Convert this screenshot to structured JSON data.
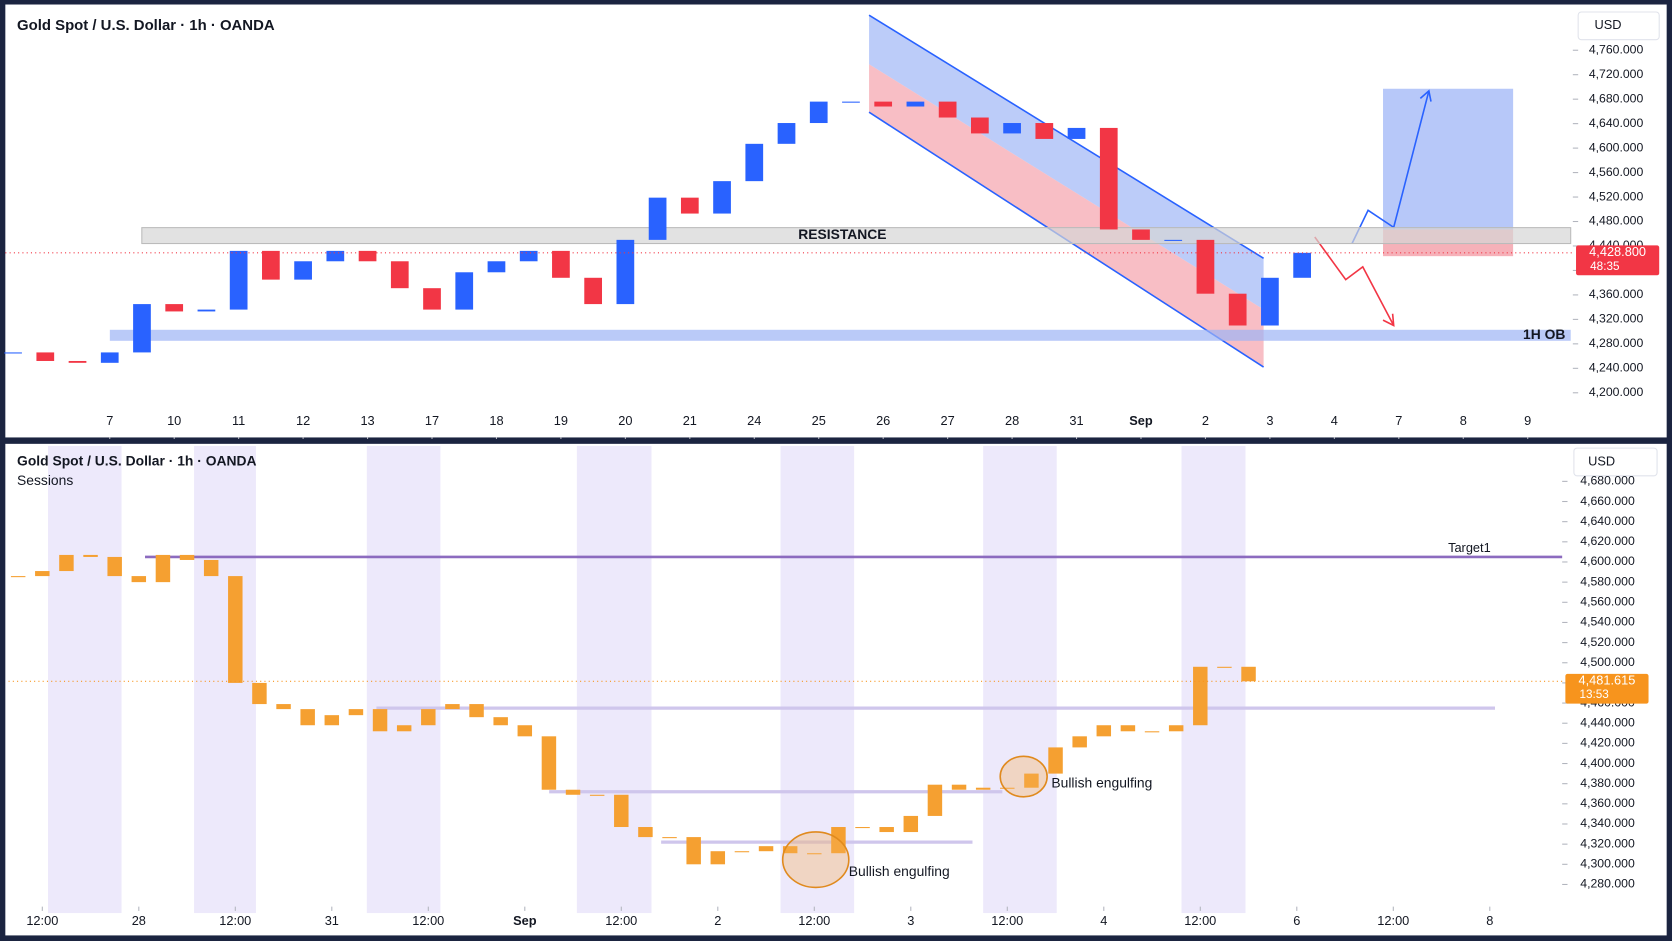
{
  "chart_data": [
    {
      "type": "candlestick",
      "title": "Gold Spot / U.S. Dollar · 1h · OANDA",
      "currency": "USD",
      "x": [
        -1.5,
        -1,
        -0.5,
        0,
        0.5,
        1,
        1.5,
        2,
        2.5,
        3,
        3.5,
        4,
        4.5,
        5,
        5.5,
        6,
        6.5,
        7,
        7.5,
        8,
        8.5,
        9,
        9.5,
        10,
        10.5,
        11,
        11.5,
        12,
        12.5,
        13,
        13.5,
        14,
        14.5,
        15,
        15.5,
        16,
        16.5,
        17,
        17.5,
        18,
        18.5
      ],
      "values": [
        4266,
        4252,
        4249,
        4266,
        4345,
        4333,
        4336,
        4432,
        4385,
        4415,
        4432,
        4415,
        4371,
        4336,
        4397,
        4415,
        4432,
        4388,
        4345,
        4450,
        4519,
        4493,
        4546,
        4607,
        4641,
        4676,
        4676,
        4668,
        4676,
        4650,
        4624,
        4641,
        4615,
        4633,
        4467,
        4450,
        4450,
        4362,
        4310,
        4388,
        4428.8
      ],
      "up_color": "#2962ff",
      "down_color": "#f23645",
      "xlim": [
        -1.62,
        22.7
      ],
      "xticks": [
        {
          "value": 0,
          "label": "7"
        },
        {
          "value": 1,
          "label": "10"
        },
        {
          "value": 2,
          "label": "11"
        },
        {
          "value": 3,
          "label": "12"
        },
        {
          "value": 4,
          "label": "13"
        },
        {
          "value": 5,
          "label": "17"
        },
        {
          "value": 6,
          "label": "18"
        },
        {
          "value": 7,
          "label": "19"
        },
        {
          "value": 8,
          "label": "20"
        },
        {
          "value": 9,
          "label": "21"
        },
        {
          "value": 10,
          "label": "24"
        },
        {
          "value": 11,
          "label": "25"
        },
        {
          "value": 12,
          "label": "26"
        },
        {
          "value": 13,
          "label": "27"
        },
        {
          "value": 14,
          "label": "28"
        },
        {
          "value": 15,
          "label": "31"
        },
        {
          "value": 16,
          "label": "Sep"
        },
        {
          "value": 17,
          "label": "2"
        },
        {
          "value": 18,
          "label": "3"
        },
        {
          "value": 19,
          "label": "4"
        },
        {
          "value": 20,
          "label": "7"
        },
        {
          "value": 21,
          "label": "8"
        },
        {
          "value": 22,
          "label": "9"
        }
      ],
      "ylim": [
        4127,
        4833
      ],
      "yticks": [
        {
          "value": 4200,
          "label": "4,200.000"
        },
        {
          "value": 4240,
          "label": "4,240.000"
        },
        {
          "value": 4280,
          "label": "4,280.000"
        },
        {
          "value": 4320,
          "label": "4,320.000"
        },
        {
          "value": 4360,
          "label": "4,360.000"
        },
        {
          "value": 4400,
          "label": "4,400.000"
        },
        {
          "value": 4440,
          "label": "4,440.000"
        },
        {
          "value": 4480,
          "label": "4,480.000"
        },
        {
          "value": 4520,
          "label": "4,520.000"
        },
        {
          "value": 4560,
          "label": "4,560.000"
        },
        {
          "value": 4600,
          "label": "4,600.000"
        },
        {
          "value": 4640,
          "label": "4,640.000"
        },
        {
          "value": 4680,
          "label": "4,680.000"
        },
        {
          "value": 4720,
          "label": "4,720.000"
        },
        {
          "value": 4760,
          "label": "4,760.000"
        }
      ],
      "price_label": {
        "value": 4428.8,
        "label": "4,428.800"
      },
      "countdown": "48:35",
      "price_color": "#f23645",
      "zones": [
        {
          "label": "RESISTANCE",
          "from": 4444,
          "to": 4470,
          "color": "#d6d6d6"
        },
        {
          "label": "1H OB",
          "from": 4285,
          "to": 4303,
          "color": "#9db4f5"
        }
      ]
    },
    {
      "type": "candlestick",
      "title": "Gold Spot / U.S. Dollar · 1h · OANDA",
      "subtitle": "Sessions",
      "currency": "USD",
      "x": [
        -0.25,
        0,
        0.25,
        0.5,
        0.75,
        1,
        1.25,
        1.5,
        1.75,
        2,
        2.25,
        2.5,
        2.75,
        3,
        3.25,
        3.5,
        3.75,
        4,
        4.25,
        4.5,
        4.75,
        5,
        5.25,
        5.5,
        5.75,
        6,
        6.25,
        6.5,
        6.75,
        7,
        7.25,
        7.5,
        7.75,
        8,
        8.25,
        8.5,
        8.75,
        9,
        9.25,
        9.5,
        9.75,
        10,
        10.25,
        10.5,
        10.75,
        11,
        11.25,
        11.5,
        11.75,
        12,
        12.25,
        12.5
      ],
      "values": [
        4586,
        4591,
        4607,
        4605,
        4586,
        4580,
        4607,
        4602,
        4586,
        4480,
        4459,
        4454,
        4438,
        4448,
        4454,
        4432,
        4438,
        4454,
        4459,
        4446,
        4438,
        4427,
        4374,
        4369,
        4369,
        4337,
        4327,
        4327,
        4300,
        4313,
        4313,
        4318,
        4311,
        4311,
        4337,
        4337,
        4332,
        4348,
        4379,
        4374,
        4376,
        4376,
        4390,
        4416,
        4427,
        4438,
        4432,
        4432,
        4438,
        4496,
        4496,
        4481.615
      ],
      "up_color": "#f5a031",
      "down_color": "#f5a031",
      "xlim": [
        -0.35,
        15.75
      ],
      "xticks": [
        {
          "value": 0,
          "label": "12:00"
        },
        {
          "value": 1,
          "label": "28"
        },
        {
          "value": 2,
          "label": "12:00"
        },
        {
          "value": 3,
          "label": "31"
        },
        {
          "value": 4,
          "label": "12:00"
        },
        {
          "value": 5,
          "label": "Sep"
        },
        {
          "value": 6,
          "label": "12:00"
        },
        {
          "value": 7,
          "label": "2"
        },
        {
          "value": 8,
          "label": "12:00"
        },
        {
          "value": 9,
          "label": "3"
        },
        {
          "value": 10,
          "label": "12:00"
        },
        {
          "value": 11,
          "label": "4"
        },
        {
          "value": 12,
          "label": "12:00"
        },
        {
          "value": 13,
          "label": "6"
        },
        {
          "value": 14,
          "label": "12:00"
        },
        {
          "value": 15,
          "label": "8"
        }
      ],
      "ylim": [
        4258,
        4713
      ],
      "yticks": [
        {
          "value": 4280,
          "label": "4,280.000"
        },
        {
          "value": 4300,
          "label": "4,300.000"
        },
        {
          "value": 4320,
          "label": "4,320.000"
        },
        {
          "value": 4340,
          "label": "4,340.000"
        },
        {
          "value": 4360,
          "label": "4,360.000"
        },
        {
          "value": 4380,
          "label": "4,380.000"
        },
        {
          "value": 4400,
          "label": "4,400.000"
        },
        {
          "value": 4420,
          "label": "4,420.000"
        },
        {
          "value": 4440,
          "label": "4,440.000"
        },
        {
          "value": 4460,
          "label": "4,460.000"
        },
        {
          "value": 4480,
          "label": "4,480.000"
        },
        {
          "value": 4500,
          "label": "4,500.000"
        },
        {
          "value": 4520,
          "label": "4,520.000"
        },
        {
          "value": 4540,
          "label": "4,540.000"
        },
        {
          "value": 4560,
          "label": "4,560.000"
        },
        {
          "value": 4580,
          "label": "4,580.000"
        },
        {
          "value": 4600,
          "label": "4,600.000"
        },
        {
          "value": 4620,
          "label": "4,620.000"
        },
        {
          "value": 4640,
          "label": "4,640.000"
        },
        {
          "value": 4660,
          "label": "4,660.000"
        },
        {
          "value": 4680,
          "label": "4,680.000"
        }
      ],
      "price_label": {
        "value": 4481.615,
        "label": "4,481.615"
      },
      "countdown": "13:53",
      "price_color": "#f7941d",
      "levels": [
        {
          "value": 4605,
          "label": "Target1"
        },
        {
          "value": 4455
        },
        {
          "value": 4372
        },
        {
          "value": 4322
        }
      ],
      "annotations": [
        "Bullish engulfing",
        "Bullish engulfing"
      ]
    }
  ]
}
